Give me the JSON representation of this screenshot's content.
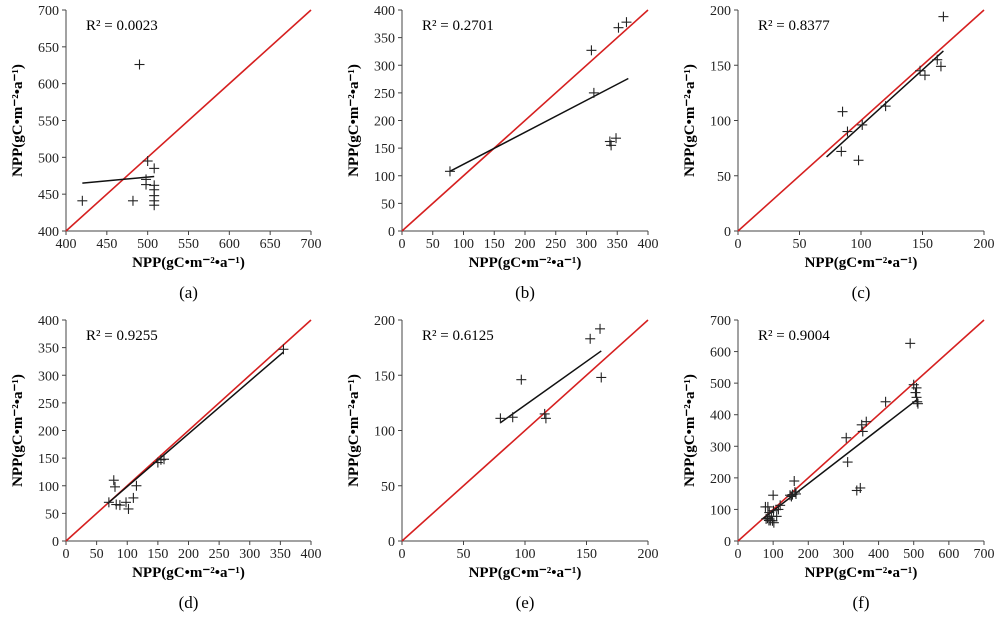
{
  "chart_data": [
    {
      "type": "scatter",
      "panel_label": "(a)",
      "xlabel": "NPP(gC•m⁻²•a⁻¹)",
      "ylabel": "NPP(gC•m⁻²•a⁻¹)",
      "xlim": [
        400,
        700
      ],
      "ylim": [
        400,
        700
      ],
      "xticks": [
        400,
        450,
        500,
        550,
        600,
        650,
        700
      ],
      "yticks": [
        400,
        450,
        500,
        550,
        600,
        650,
        700
      ],
      "r2_text": "R² = 0.0023",
      "points": [
        [
          420,
          441
        ],
        [
          482,
          441
        ],
        [
          490,
          626
        ],
        [
          498,
          463
        ],
        [
          498,
          470
        ],
        [
          500,
          495
        ],
        [
          508,
          485
        ],
        [
          508,
          462
        ],
        [
          508,
          456
        ],
        [
          508,
          448
        ],
        [
          508,
          441
        ],
        [
          508,
          435
        ]
      ],
      "trendline": [
        [
          420,
          465
        ],
        [
          508,
          474
        ]
      ],
      "one_to_one": true
    },
    {
      "type": "scatter",
      "panel_label": "(b)",
      "xlabel": "NPP(gC•m⁻²•a⁻¹)",
      "ylabel": "NPP(gC•m⁻²•a⁻¹)",
      "xlim": [
        0,
        400
      ],
      "ylim": [
        0,
        400
      ],
      "xticks": [
        0,
        50,
        100,
        150,
        200,
        250,
        300,
        350,
        400
      ],
      "yticks": [
        0,
        50,
        100,
        150,
        200,
        250,
        300,
        350,
        400
      ],
      "r2_text": "R² = 0.2701",
      "points": [
        [
          78,
          108
        ],
        [
          308,
          327
        ],
        [
          312,
          250
        ],
        [
          338,
          162
        ],
        [
          340,
          155
        ],
        [
          348,
          168
        ],
        [
          352,
          368
        ],
        [
          365,
          378
        ]
      ],
      "trendline": [
        [
          78,
          108
        ],
        [
          368,
          276
        ]
      ],
      "one_to_one": true
    },
    {
      "type": "scatter",
      "panel_label": "(c)",
      "xlabel": "NPP(gC•m⁻²•a⁻¹)",
      "ylabel": "NPP(gC•m⁻²•a⁻¹)",
      "xlim": [
        0,
        200
      ],
      "ylim": [
        0,
        200
      ],
      "xticks": [
        0,
        50,
        100,
        150,
        200
      ],
      "yticks": [
        0,
        50,
        100,
        150,
        200
      ],
      "r2_text": "R² = 0.8377",
      "points": [
        [
          84,
          72
        ],
        [
          85,
          108
        ],
        [
          89,
          90
        ],
        [
          98,
          64
        ],
        [
          101,
          96
        ],
        [
          120,
          113
        ],
        [
          148,
          145
        ],
        [
          152,
          141
        ],
        [
          162,
          155
        ],
        [
          165,
          149
        ],
        [
          167,
          194
        ]
      ],
      "trendline": [
        [
          72,
          67
        ],
        [
          167,
          163
        ]
      ],
      "one_to_one": true
    },
    {
      "type": "scatter",
      "panel_label": "(d)",
      "xlabel": "NPP(gC•m⁻²•a⁻¹)",
      "ylabel": "NPP(gC•m⁻²•a⁻¹)",
      "xlim": [
        0,
        400
      ],
      "ylim": [
        0,
        400
      ],
      "xticks": [
        0,
        50,
        100,
        150,
        200,
        250,
        300,
        350,
        400
      ],
      "yticks": [
        0,
        50,
        100,
        150,
        200,
        250,
        300,
        350,
        400
      ],
      "r2_text": "R² = 0.9255",
      "points": [
        [
          70,
          70
        ],
        [
          78,
          110
        ],
        [
          80,
          98
        ],
        [
          82,
          66
        ],
        [
          88,
          65
        ],
        [
          98,
          70
        ],
        [
          102,
          58
        ],
        [
          110,
          78
        ],
        [
          115,
          100
        ],
        [
          150,
          142
        ],
        [
          155,
          147
        ],
        [
          160,
          148
        ],
        [
          355,
          347
        ]
      ],
      "trendline": [
        [
          68,
          68
        ],
        [
          355,
          342
        ]
      ],
      "one_to_one": true
    },
    {
      "type": "scatter",
      "panel_label": "(e)",
      "xlabel": "NPP(gC•m⁻²•a⁻¹)",
      "ylabel": "NPP(gC•m⁻²•a⁻¹)",
      "xlim": [
        0,
        200
      ],
      "ylim": [
        0,
        200
      ],
      "xticks": [
        0,
        50,
        100,
        150,
        200
      ],
      "yticks": [
        0,
        50,
        100,
        150,
        200
      ],
      "r2_text": "R² = 0.6125",
      "points": [
        [
          80,
          111
        ],
        [
          90,
          112
        ],
        [
          97,
          146
        ],
        [
          116,
          115
        ],
        [
          117,
          111
        ],
        [
          153,
          183
        ],
        [
          161,
          192
        ],
        [
          162,
          148
        ]
      ],
      "trendline": [
        [
          80,
          107
        ],
        [
          162,
          172
        ]
      ],
      "one_to_one": true
    },
    {
      "type": "scatter",
      "panel_label": "(f)",
      "xlabel": "NPP(gC•m⁻²•a⁻¹)",
      "ylabel": "NPP(gC•m⁻²•a⁻¹)",
      "xlim": [
        0,
        700
      ],
      "ylim": [
        0,
        700
      ],
      "xticks": [
        0,
        100,
        200,
        300,
        400,
        500,
        600,
        700
      ],
      "yticks": [
        0,
        100,
        200,
        300,
        400,
        500,
        600,
        700
      ],
      "r2_text": "R² = 0.9004",
      "points": [
        [
          78,
          108
        ],
        [
          80,
          70
        ],
        [
          84,
          72
        ],
        [
          85,
          108
        ],
        [
          88,
          65
        ],
        [
          89,
          90
        ],
        [
          92,
          65
        ],
        [
          95,
          78
        ],
        [
          98,
          64
        ],
        [
          100,
          145
        ],
        [
          101,
          96
        ],
        [
          102,
          58
        ],
        [
          110,
          78
        ],
        [
          115,
          100
        ],
        [
          120,
          113
        ],
        [
          148,
          145
        ],
        [
          152,
          141
        ],
        [
          155,
          147
        ],
        [
          160,
          190
        ],
        [
          162,
          155
        ],
        [
          165,
          149
        ],
        [
          308,
          327
        ],
        [
          312,
          250
        ],
        [
          338,
          160
        ],
        [
          348,
          168
        ],
        [
          352,
          368
        ],
        [
          355,
          347
        ],
        [
          365,
          378
        ],
        [
          420,
          441
        ],
        [
          490,
          626
        ],
        [
          500,
          495
        ],
        [
          505,
          470
        ],
        [
          508,
          485
        ],
        [
          508,
          455
        ],
        [
          510,
          441
        ],
        [
          512,
          435
        ]
      ],
      "trendline": [
        [
          70,
          70
        ],
        [
          512,
          450
        ]
      ],
      "one_to_one": true
    }
  ],
  "colors": {
    "one_to_one_line": "#d62020",
    "trend_line": "#111111",
    "marker": "#222222",
    "axis": "#444444"
  }
}
